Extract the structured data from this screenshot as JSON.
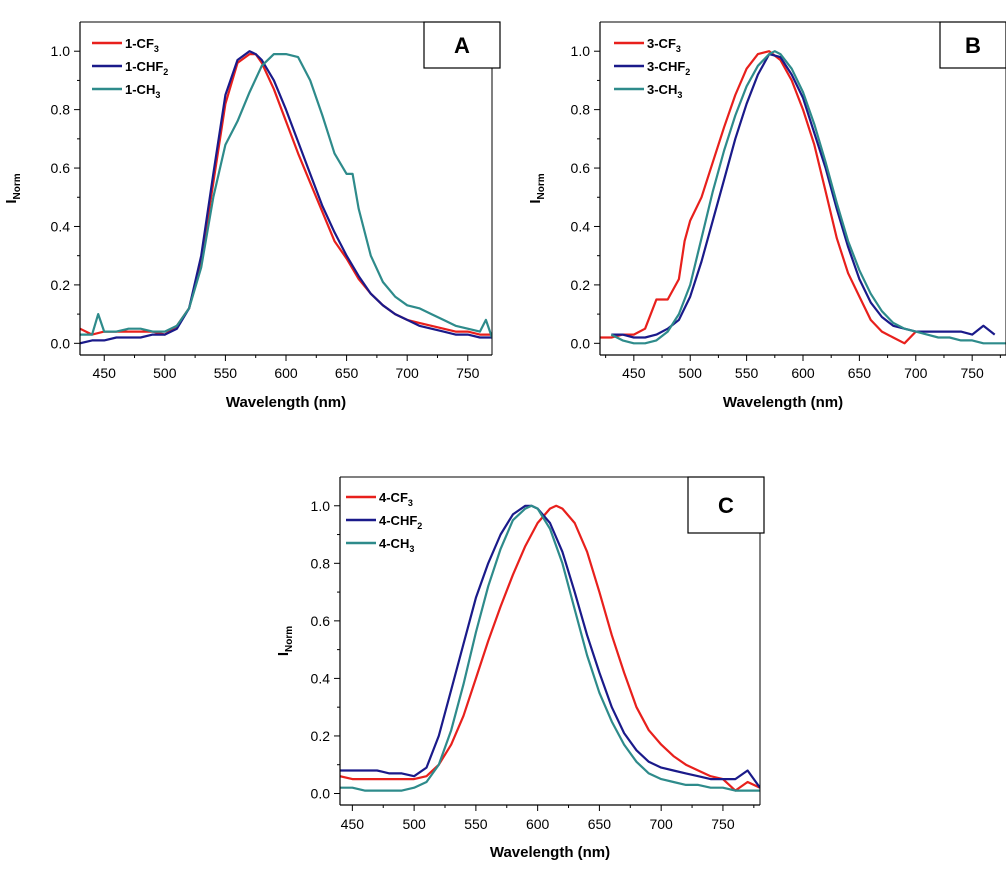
{
  "chart_data": [
    {
      "type": "line",
      "panel": "A",
      "xlabel": "Wavelength (nm)",
      "ylabel": {
        "main": "I",
        "sub": "Norm"
      },
      "xlim": [
        430,
        770
      ],
      "ylim": [
        -0.04,
        1.1
      ],
      "xticks": [
        450,
        500,
        550,
        600,
        650,
        700,
        750
      ],
      "yticks": [
        0.0,
        0.2,
        0.4,
        0.6,
        0.8,
        1.0
      ],
      "ytick_labels": [
        "0.0",
        "0.2",
        "0.4",
        "0.6",
        "0.8",
        "1.0"
      ],
      "grid": false,
      "legend_position": "top-left",
      "series": [
        {
          "name": "1-CF",
          "sub": "3",
          "color": "#e8201c",
          "x": [
            430,
            440,
            450,
            460,
            470,
            480,
            490,
            500,
            510,
            520,
            530,
            540,
            550,
            560,
            570,
            575,
            580,
            590,
            600,
            610,
            620,
            630,
            640,
            650,
            660,
            670,
            680,
            690,
            700,
            710,
            720,
            730,
            740,
            750,
            760,
            770
          ],
          "y": [
            0.05,
            0.03,
            0.04,
            0.04,
            0.04,
            0.04,
            0.04,
            0.03,
            0.06,
            0.12,
            0.28,
            0.55,
            0.82,
            0.96,
            0.99,
            0.99,
            0.96,
            0.87,
            0.76,
            0.65,
            0.55,
            0.45,
            0.35,
            0.29,
            0.22,
            0.17,
            0.13,
            0.1,
            0.08,
            0.07,
            0.06,
            0.05,
            0.04,
            0.04,
            0.03,
            0.03
          ]
        },
        {
          "name": "1-CHF",
          "sub": "2",
          "color": "#1a1a8a",
          "x": [
            430,
            440,
            450,
            460,
            470,
            480,
            490,
            500,
            510,
            520,
            530,
            540,
            550,
            560,
            570,
            575,
            580,
            590,
            600,
            610,
            620,
            630,
            640,
            650,
            660,
            670,
            680,
            690,
            700,
            710,
            720,
            730,
            740,
            750,
            760,
            770
          ],
          "y": [
            0.0,
            0.01,
            0.01,
            0.02,
            0.02,
            0.02,
            0.03,
            0.03,
            0.05,
            0.12,
            0.3,
            0.58,
            0.85,
            0.97,
            1.0,
            0.99,
            0.97,
            0.9,
            0.8,
            0.69,
            0.58,
            0.47,
            0.38,
            0.3,
            0.23,
            0.17,
            0.13,
            0.1,
            0.08,
            0.06,
            0.05,
            0.04,
            0.03,
            0.03,
            0.02,
            0.02
          ]
        },
        {
          "name": "1-CH",
          "sub": "3",
          "color": "#2e8b8b",
          "x": [
            430,
            440,
            445,
            450,
            460,
            470,
            480,
            490,
            500,
            510,
            520,
            530,
            540,
            550,
            560,
            570,
            580,
            590,
            600,
            610,
            620,
            630,
            640,
            650,
            655,
            660,
            670,
            680,
            690,
            700,
            710,
            720,
            730,
            740,
            750,
            760,
            765,
            770
          ],
          "y": [
            0.03,
            0.03,
            0.1,
            0.04,
            0.04,
            0.05,
            0.05,
            0.04,
            0.04,
            0.06,
            0.12,
            0.26,
            0.5,
            0.68,
            0.76,
            0.86,
            0.95,
            0.99,
            0.99,
            0.98,
            0.9,
            0.78,
            0.65,
            0.58,
            0.58,
            0.46,
            0.3,
            0.21,
            0.16,
            0.13,
            0.12,
            0.1,
            0.08,
            0.06,
            0.05,
            0.04,
            0.08,
            0.02
          ]
        }
      ]
    },
    {
      "type": "line",
      "panel": "B",
      "xlabel": "Wavelength (nm)",
      "ylabel": {
        "main": "I",
        "sub": "Norm"
      },
      "xlim": [
        420,
        780
      ],
      "ylim": [
        -0.04,
        1.1
      ],
      "xticks": [
        450,
        500,
        550,
        600,
        650,
        700,
        750
      ],
      "yticks": [
        0.0,
        0.2,
        0.4,
        0.6,
        0.8,
        1.0
      ],
      "ytick_labels": [
        "0.0",
        "0.2",
        "0.4",
        "0.6",
        "0.8",
        "1.0"
      ],
      "grid": false,
      "legend_position": "top-left",
      "series": [
        {
          "name": "3-CF",
          "sub": "3",
          "color": "#e8201c",
          "x": [
            420,
            430,
            440,
            450,
            460,
            470,
            480,
            490,
            495,
            500,
            510,
            520,
            530,
            540,
            550,
            560,
            570,
            580,
            590,
            600,
            610,
            620,
            630,
            640,
            650,
            660,
            670,
            680,
            690,
            700
          ],
          "y": [
            0.02,
            0.02,
            0.03,
            0.03,
            0.05,
            0.15,
            0.15,
            0.22,
            0.35,
            0.42,
            0.5,
            0.62,
            0.74,
            0.85,
            0.94,
            0.99,
            1.0,
            0.97,
            0.9,
            0.8,
            0.68,
            0.52,
            0.36,
            0.24,
            0.16,
            0.08,
            0.04,
            0.02,
            0.0,
            0.04
          ]
        },
        {
          "name": "3-CHF",
          "sub": "2",
          "color": "#1a1a8a",
          "x": [
            430,
            440,
            450,
            460,
            470,
            480,
            490,
            500,
            510,
            520,
            530,
            540,
            550,
            560,
            570,
            580,
            590,
            600,
            610,
            620,
            630,
            640,
            650,
            660,
            670,
            680,
            690,
            700,
            710,
            720,
            730,
            740,
            750,
            760,
            770
          ],
          "y": [
            0.03,
            0.03,
            0.02,
            0.02,
            0.03,
            0.05,
            0.08,
            0.16,
            0.28,
            0.42,
            0.56,
            0.7,
            0.82,
            0.92,
            0.99,
            0.98,
            0.92,
            0.84,
            0.72,
            0.6,
            0.46,
            0.33,
            0.22,
            0.14,
            0.09,
            0.06,
            0.05,
            0.04,
            0.04,
            0.04,
            0.04,
            0.04,
            0.03,
            0.06,
            0.03
          ]
        },
        {
          "name": "3-CH",
          "sub": "3",
          "color": "#2e8b8b",
          "x": [
            430,
            440,
            450,
            460,
            470,
            480,
            490,
            500,
            510,
            520,
            530,
            540,
            550,
            560,
            570,
            575,
            580,
            590,
            600,
            610,
            620,
            630,
            640,
            650,
            660,
            670,
            680,
            690,
            700,
            710,
            720,
            730,
            740,
            750,
            760,
            770,
            780
          ],
          "y": [
            0.03,
            0.01,
            0.0,
            0.0,
            0.01,
            0.04,
            0.1,
            0.2,
            0.36,
            0.52,
            0.66,
            0.78,
            0.88,
            0.95,
            0.99,
            1.0,
            0.99,
            0.94,
            0.86,
            0.75,
            0.62,
            0.48,
            0.35,
            0.25,
            0.17,
            0.11,
            0.07,
            0.05,
            0.04,
            0.03,
            0.02,
            0.02,
            0.01,
            0.01,
            0.0,
            0.0,
            0.0
          ]
        }
      ]
    },
    {
      "type": "line",
      "panel": "C",
      "xlabel": "Wavelength (nm)",
      "ylabel": {
        "main": "I",
        "sub": "Norm"
      },
      "xlim": [
        440,
        780
      ],
      "ylim": [
        -0.04,
        1.1
      ],
      "xticks": [
        450,
        500,
        550,
        600,
        650,
        700,
        750
      ],
      "yticks": [
        0.0,
        0.2,
        0.4,
        0.6,
        0.8,
        1.0
      ],
      "ytick_labels": [
        "0.0",
        "0.2",
        "0.4",
        "0.6",
        "0.8",
        "1.0"
      ],
      "grid": false,
      "legend_position": "top-left",
      "series": [
        {
          "name": "4-CF",
          "sub": "3",
          "color": "#e8201c",
          "x": [
            440,
            450,
            460,
            470,
            480,
            490,
            500,
            510,
            520,
            530,
            540,
            550,
            560,
            570,
            580,
            590,
            600,
            610,
            615,
            620,
            630,
            640,
            650,
            660,
            670,
            680,
            690,
            700,
            710,
            720,
            730,
            740,
            750,
            760,
            770,
            780
          ],
          "y": [
            0.06,
            0.05,
            0.05,
            0.05,
            0.05,
            0.05,
            0.05,
            0.06,
            0.1,
            0.17,
            0.27,
            0.4,
            0.53,
            0.65,
            0.76,
            0.86,
            0.94,
            0.99,
            1.0,
            0.99,
            0.94,
            0.84,
            0.7,
            0.55,
            0.42,
            0.3,
            0.22,
            0.17,
            0.13,
            0.1,
            0.08,
            0.06,
            0.05,
            0.01,
            0.04,
            0.02
          ]
        },
        {
          "name": "4-CHF",
          "sub": "2",
          "color": "#1a1a8a",
          "x": [
            440,
            450,
            460,
            470,
            480,
            490,
            500,
            510,
            520,
            530,
            540,
            550,
            560,
            570,
            580,
            590,
            595,
            600,
            610,
            620,
            630,
            640,
            650,
            660,
            670,
            680,
            690,
            700,
            710,
            720,
            730,
            740,
            750,
            760,
            770,
            780
          ],
          "y": [
            0.08,
            0.08,
            0.08,
            0.08,
            0.07,
            0.07,
            0.06,
            0.09,
            0.2,
            0.36,
            0.52,
            0.68,
            0.8,
            0.9,
            0.97,
            1.0,
            1.0,
            0.99,
            0.94,
            0.84,
            0.7,
            0.55,
            0.42,
            0.3,
            0.21,
            0.15,
            0.11,
            0.09,
            0.08,
            0.07,
            0.06,
            0.05,
            0.05,
            0.05,
            0.08,
            0.02
          ]
        },
        {
          "name": "4-CH",
          "sub": "3",
          "color": "#2e8b8b",
          "x": [
            440,
            450,
            460,
            470,
            480,
            490,
            500,
            510,
            520,
            530,
            540,
            550,
            560,
            570,
            580,
            590,
            595,
            600,
            610,
            620,
            630,
            640,
            650,
            660,
            670,
            680,
            690,
            700,
            710,
            720,
            730,
            740,
            750,
            760,
            770,
            780
          ],
          "y": [
            0.02,
            0.02,
            0.01,
            0.01,
            0.01,
            0.01,
            0.02,
            0.04,
            0.1,
            0.22,
            0.38,
            0.56,
            0.72,
            0.85,
            0.95,
            0.99,
            1.0,
            0.99,
            0.92,
            0.8,
            0.64,
            0.48,
            0.35,
            0.25,
            0.17,
            0.11,
            0.07,
            0.05,
            0.04,
            0.03,
            0.03,
            0.02,
            0.02,
            0.01,
            0.01,
            0.01
          ]
        }
      ]
    }
  ]
}
